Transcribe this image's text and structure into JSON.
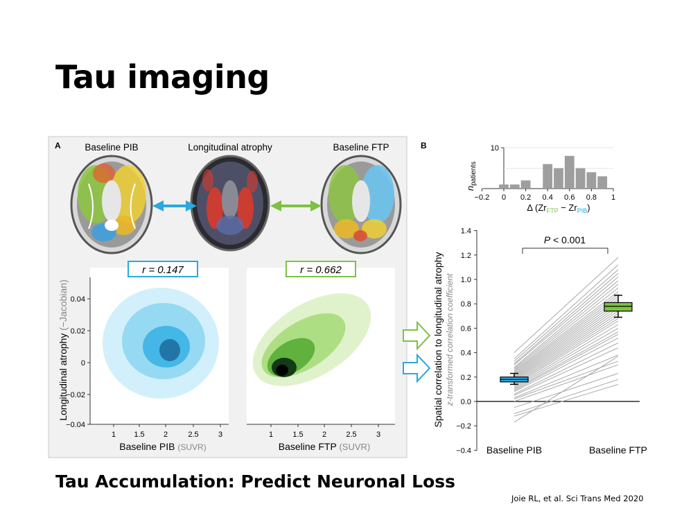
{
  "slide": {
    "title": "Tau imaging",
    "subtitle": "Tau Accumulation: Predict Neuronal Loss",
    "citation": "Joie RL, et al. Sci Trans Med 2020"
  },
  "figure": {
    "panel_a": {
      "label": "A",
      "brain_labels": [
        "Baseline PIB",
        "Longitudinal atrophy",
        "Baseline FTP"
      ],
      "r_left": "r = 0.147",
      "r_right": "r = 0.662",
      "ylabel_main": "Longitudinal atrophy",
      "ylabel_unit": "(−Jacobian)",
      "xlabel_left_main": "Baseline PIB",
      "xlabel_left_unit": "(SUVR)",
      "xlabel_right_main": "Baseline FTP",
      "xlabel_right_unit": "(SUVR)",
      "y_ticks": [
        "0.04",
        "0.02",
        "0",
        "−0.02",
        "−0.04"
      ],
      "x_ticks": [
        "1",
        "1.5",
        "2",
        "2.5",
        "3"
      ]
    },
    "panel_b": {
      "label": "B",
      "p_value": "P < 0.001",
      "ylabel_main": "Spatial correlation to longitudinal atrophy",
      "ylabel_sub": "z-transformed correlation coefficient",
      "hist_ylabel": "n",
      "hist_ylabel_sub": "patients",
      "hist_xlabel": "Δ (Zr",
      "hist_xlabel_ftp": "FTP",
      "hist_xlabel_mid": " − Zr",
      "hist_xlabel_pib": "PIB",
      "hist_xlabel_end": ")"
    }
  },
  "colors": {
    "pib": "#29a9e0",
    "ftp": "#7dc242",
    "atrophy": "#d93a2b"
  },
  "chart_data": [
    {
      "type": "bar",
      "title": "",
      "xlabel": "Δ (ZrFTP − ZrPIB)",
      "ylabel": "n patients",
      "bin_centers": [
        0.0,
        0.1,
        0.2,
        0.3,
        0.4,
        0.5,
        0.6,
        0.7,
        0.8,
        0.9
      ],
      "values": [
        1,
        1,
        2,
        0,
        6,
        5,
        8,
        5,
        4,
        3
      ],
      "x_ticks": [
        "−0.2",
        "0",
        "0.2",
        "0.4",
        "0.6",
        "0.8",
        "1"
      ],
      "y_ticks": [
        "10"
      ],
      "xlim": [
        -0.2,
        1.0
      ],
      "ylim": [
        0,
        10
      ]
    },
    {
      "type": "line",
      "title": "",
      "categories": [
        "Baseline PIB",
        "Baseline FTP"
      ],
      "ylabel": "Spatial correlation to longitudinal atrophy",
      "ylim": [
        -0.4,
        1.4
      ],
      "y_ticks": [
        "−0.4",
        "−0.2",
        "0.0",
        "0.2",
        "0.4",
        "0.6",
        "0.8",
        "1.0",
        "1.2",
        "1.4"
      ],
      "paired_values": [
        [
          0.4,
          1.18
        ],
        [
          0.35,
          1.12
        ],
        [
          0.33,
          1.08
        ],
        [
          0.31,
          1.05
        ],
        [
          0.3,
          1.02
        ],
        [
          0.28,
          0.99
        ],
        [
          0.27,
          0.96
        ],
        [
          0.26,
          0.93
        ],
        [
          0.25,
          0.9
        ],
        [
          0.24,
          0.88
        ],
        [
          0.23,
          0.86
        ],
        [
          0.22,
          0.84
        ],
        [
          0.21,
          0.82
        ],
        [
          0.2,
          0.8
        ],
        [
          0.19,
          0.78
        ],
        [
          0.18,
          0.76
        ],
        [
          0.17,
          0.74
        ],
        [
          0.16,
          0.72
        ],
        [
          0.15,
          0.7
        ],
        [
          0.14,
          0.68
        ],
        [
          0.13,
          0.66
        ],
        [
          0.12,
          0.63
        ],
        [
          0.11,
          0.6
        ],
        [
          0.1,
          0.57
        ],
        [
          0.09,
          0.55
        ],
        [
          0.08,
          0.52
        ],
        [
          0.06,
          0.48
        ],
        [
          0.05,
          0.44
        ],
        [
          0.03,
          0.38
        ],
        [
          0.02,
          0.33
        ],
        [
          0.0,
          0.3
        ],
        [
          -0.05,
          0.23
        ],
        [
          -0.1,
          0.18
        ],
        [
          -0.12,
          0.14
        ],
        [
          -0.17,
          0.37
        ]
      ],
      "series": [
        {
          "name": "Baseline PIB",
          "median": 0.18,
          "q1": 0.16,
          "q3": 0.2,
          "whisker_low": 0.14,
          "whisker_high": 0.23
        },
        {
          "name": "Baseline FTP",
          "median": 0.78,
          "q1": 0.74,
          "q3": 0.81,
          "whisker_low": 0.69,
          "whisker_high": 0.87
        }
      ]
    }
  ]
}
